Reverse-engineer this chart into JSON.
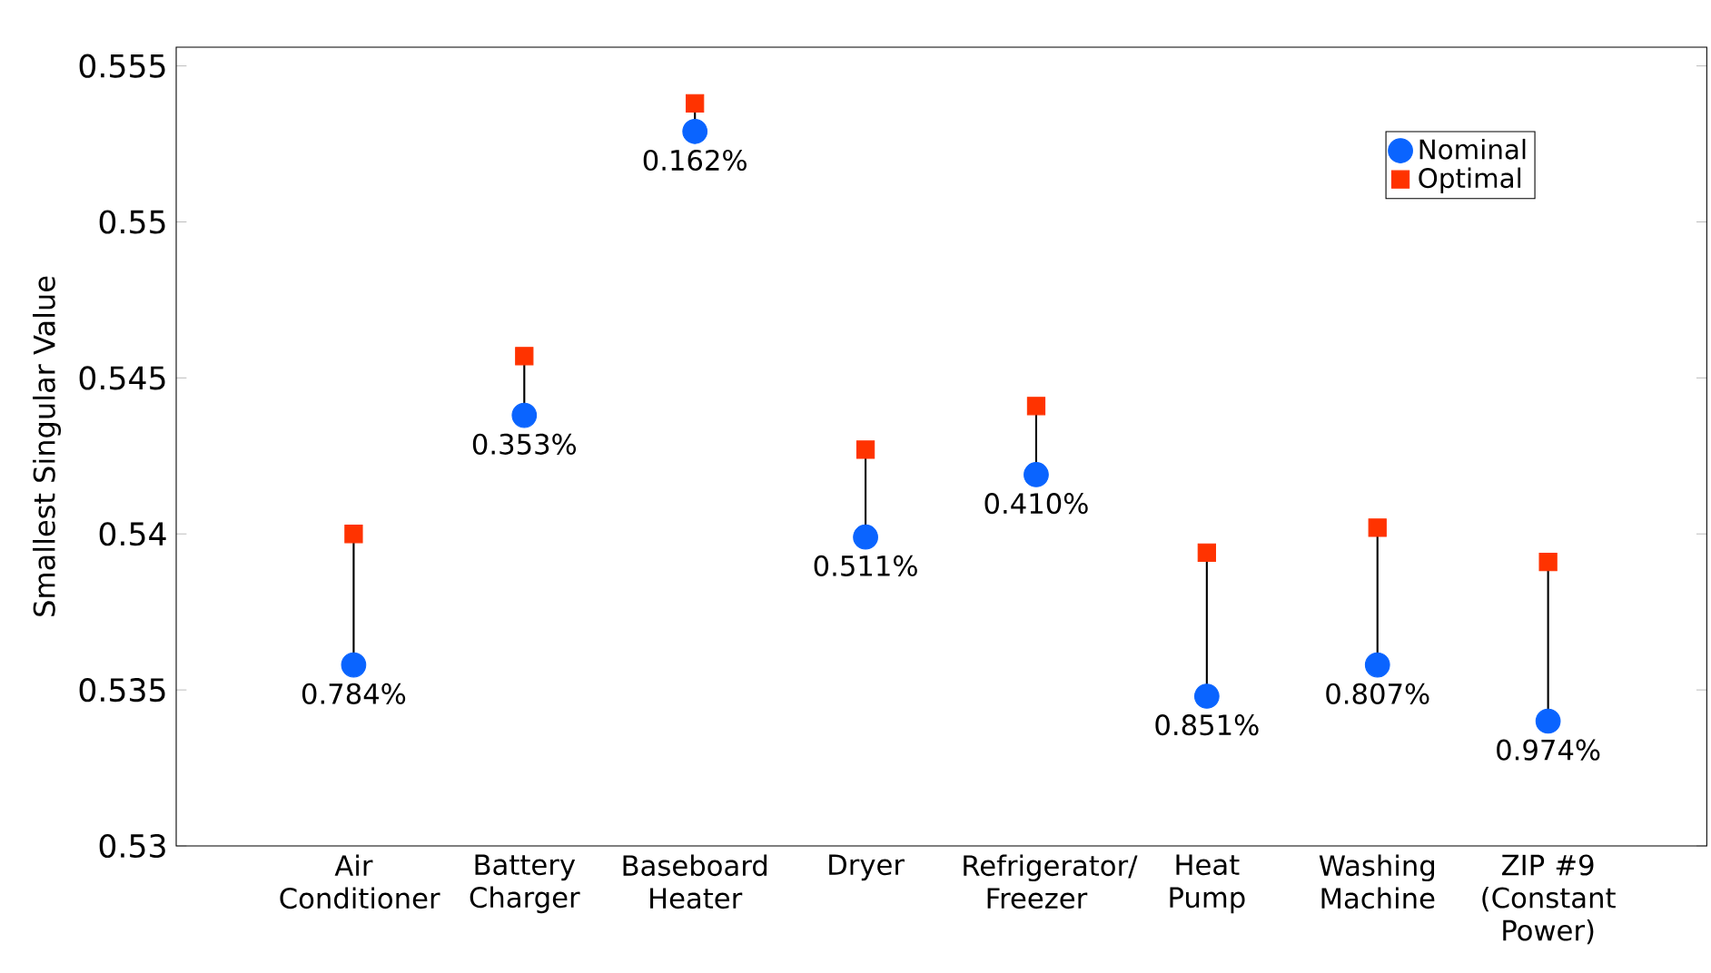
{
  "chart_data": {
    "type": "scatter",
    "ylabel": "Smallest Singular Value",
    "categories": [
      "Air Conditioner",
      "Battery Charger",
      "Baseboard Heater",
      "Dryer",
      "Refrigerator/ Freezer",
      "Heat Pump",
      "Washing Machine",
      "ZIP #9 (Constant Power)"
    ],
    "series": [
      {
        "name": "Nominal",
        "color": "#0a64ff",
        "marker": "circle",
        "values": [
          0.5358,
          0.5438,
          0.5529,
          0.5399,
          0.5419,
          0.5348,
          0.5358,
          0.534
        ]
      },
      {
        "name": "Optimal",
        "color": "#ff3300",
        "marker": "square",
        "values": [
          0.54,
          0.5457,
          0.5538,
          0.5427,
          0.5441,
          0.5394,
          0.5402,
          0.5391
        ]
      }
    ],
    "annotations": [
      {
        "text": "0.784%",
        "x": "Air Conditioner",
        "y": 0.5358
      },
      {
        "text": "0.353%",
        "x": "Battery Charger",
        "y": 0.5438
      },
      {
        "text": "0.162%",
        "x": "Baseboard Heater",
        "y": 0.5529
      },
      {
        "text": "0.511%",
        "x": "Dryer",
        "y": 0.5399
      },
      {
        "text": "0.410%",
        "x": "Refrigerator/ Freezer",
        "y": 0.5419
      },
      {
        "text": "0.851%",
        "x": "Heat Pump",
        "y": 0.5348
      },
      {
        "text": "0.807%",
        "x": "Washing Machine",
        "y": 0.5358
      },
      {
        "text": "0.974%",
        "x": "ZIP #9 (Constant Power)",
        "y": 0.534
      }
    ],
    "ylim": [
      0.53,
      0.5556
    ],
    "yticks": [
      0.53,
      0.535,
      0.54,
      0.545,
      0.55,
      0.555
    ],
    "grid": false,
    "legend": "top right"
  }
}
